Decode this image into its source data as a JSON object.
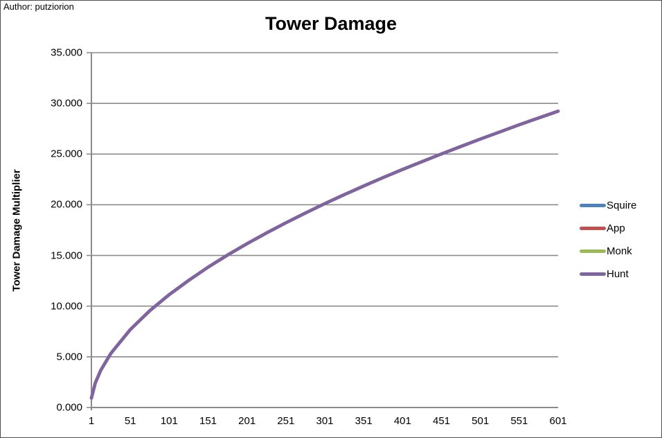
{
  "author": "Author: putziorion",
  "colors": {
    "gridline": "#8a8a8a",
    "axis": "#8a8a8a",
    "border": "#4d4d4d",
    "text": "#000000"
  },
  "chart_data": {
    "type": "line",
    "title": "Tower Damage",
    "xlabel": "",
    "ylabel": "Tower Damage Multiplier",
    "ylim": [
      0,
      35
    ],
    "xlim": [
      1,
      601
    ],
    "grid": "horizontal",
    "legend_position": "right",
    "yticks": {
      "values": [
        0,
        5,
        10,
        15,
        20,
        25,
        30,
        35
      ],
      "labels": [
        "0.000",
        "5.000",
        "10.000",
        "15.000",
        "20.000",
        "25.000",
        "30.000",
        "35.000"
      ]
    },
    "xticks": {
      "values": [
        1,
        51,
        101,
        151,
        201,
        251,
        301,
        351,
        401,
        451,
        501,
        551,
        601
      ],
      "labels": [
        "1",
        "51",
        "101",
        "151",
        "201",
        "251",
        "301",
        "351",
        "401",
        "451",
        "501",
        "551",
        "601"
      ]
    },
    "x": [
      1,
      6,
      13,
      26,
      51,
      76,
      101,
      126,
      151,
      176,
      201,
      226,
      251,
      276,
      301,
      326,
      351,
      376,
      401,
      426,
      451,
      476,
      501,
      526,
      551,
      576,
      601
    ],
    "series": [
      {
        "name": "Squire",
        "color": "#4F81BD",
        "values": [
          0.92,
          2.42,
          3.67,
          5.34,
          7.69,
          9.55,
          11.13,
          12.54,
          13.84,
          15.04,
          16.16,
          17.21,
          18.22,
          19.18,
          20.11,
          20.99,
          21.85,
          22.68,
          23.48,
          24.25,
          25.01,
          25.75,
          26.48,
          27.18,
          27.89,
          28.56,
          29.23
        ]
      },
      {
        "name": "App",
        "color": "#C0504D",
        "values": [
          0.92,
          2.42,
          3.67,
          5.34,
          7.69,
          9.55,
          11.13,
          12.54,
          13.84,
          15.04,
          16.16,
          17.21,
          18.22,
          19.18,
          20.11,
          20.99,
          21.85,
          22.68,
          23.48,
          24.25,
          25.01,
          25.75,
          26.48,
          27.18,
          27.89,
          28.56,
          29.23
        ]
      },
      {
        "name": "Monk",
        "color": "#9BBB59",
        "values": [
          0.92,
          2.42,
          3.67,
          5.34,
          7.69,
          9.55,
          11.13,
          12.54,
          13.84,
          15.04,
          16.16,
          17.21,
          18.22,
          19.18,
          20.11,
          20.99,
          21.85,
          22.68,
          23.48,
          24.25,
          25.01,
          25.75,
          26.48,
          27.18,
          27.89,
          28.56,
          29.23
        ]
      },
      {
        "name": "Hunt",
        "color": "#8064A2",
        "values": [
          0.92,
          2.42,
          3.67,
          5.34,
          7.69,
          9.55,
          11.13,
          12.54,
          13.84,
          15.04,
          16.16,
          17.21,
          18.22,
          19.18,
          20.11,
          20.99,
          21.85,
          22.68,
          23.48,
          24.25,
          25.01,
          25.75,
          26.48,
          27.18,
          27.89,
          28.56,
          29.23
        ]
      }
    ]
  }
}
